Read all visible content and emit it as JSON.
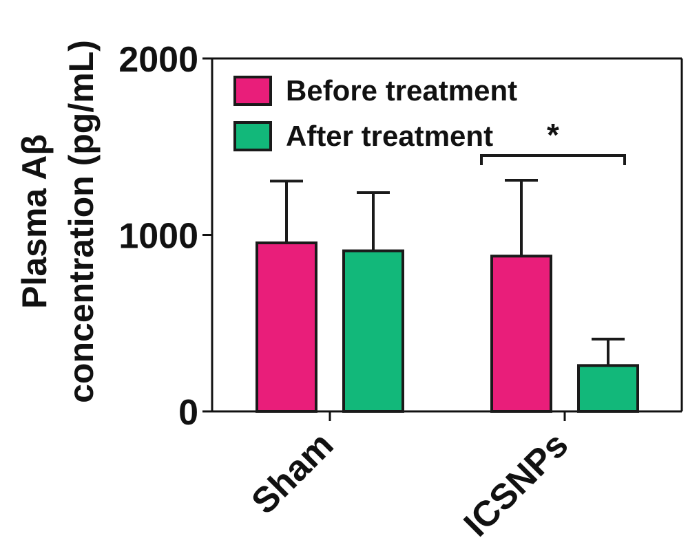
{
  "chart_data": {
    "type": "bar",
    "ylabel_line1": "Plasma Aβ",
    "ylabel_line2": "concentration (pg/mL)",
    "xlabel": "",
    "categories": [
      "Sham",
      "ICSNPs"
    ],
    "ylim": [
      0,
      2000
    ],
    "yticks": [
      0,
      1000,
      2000
    ],
    "ytick_labels": [
      "0",
      "1000",
      "2000"
    ],
    "series": [
      {
        "name": "Before treatment",
        "color": "#e91e7a",
        "values": [
          955,
          880
        ],
        "errors": [
          350,
          430
        ]
      },
      {
        "name": "After treatment",
        "color": "#12b87a",
        "values": [
          910,
          260
        ],
        "errors": [
          330,
          150
        ]
      }
    ],
    "significance": {
      "label": "*",
      "category": "ICSNPs",
      "between": [
        "Before treatment",
        "After treatment"
      ]
    },
    "legend_position": "top-left",
    "grid": false
  }
}
